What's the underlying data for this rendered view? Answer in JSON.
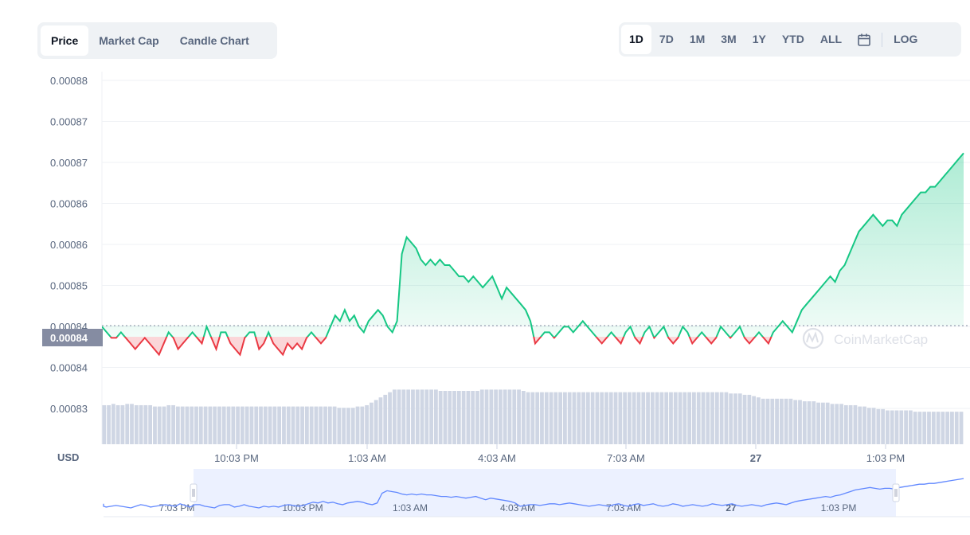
{
  "tabs": [
    "Price",
    "Market Cap",
    "Candle Chart"
  ],
  "ranges": [
    "1D",
    "7D",
    "1M",
    "3M",
    "1Y",
    "YTD",
    "ALL"
  ],
  "log_label": "LOG",
  "icons": {
    "calendar": "calendar-icon",
    "watermark": "coinmarketcap-logo"
  },
  "watermark_text": "CoinMarketCap",
  "currency_label": "USD",
  "current_price_label": "0.00084",
  "colors": {
    "up": "#16c784",
    "down": "#ea3943",
    "volume": "#cfd6e4",
    "navigator": "#6188ff"
  },
  "chart_data": {
    "type": "line",
    "y_tick_labels": [
      "0.00088",
      "0.00087",
      "0.00087",
      "0.00086",
      "0.00086",
      "0.00085",
      "0.00084",
      "0.00084",
      "0.00083"
    ],
    "x_tick_labels": [
      "10:03 PM",
      "1:03 AM",
      "4:03 AM",
      "7:03 AM",
      "27",
      "1:03 PM"
    ],
    "navigator_labels": [
      "7:03 PM",
      "10:03 PM",
      "1:03 AM",
      "4:03 AM",
      "7:03 AM",
      "27",
      "1:03 PM"
    ],
    "baseline": 0.0008412,
    "ylim": [
      0.00082,
      0.000885
    ],
    "series": [
      {
        "values": [
          0.000841,
          0.00084,
          0.000839,
          0.000839,
          0.00084,
          0.000839,
          0.000838,
          0.000837,
          0.000838,
          0.000839,
          0.000838,
          0.000837,
          0.000836,
          0.000838,
          0.00084,
          0.000839,
          0.000837,
          0.000838,
          0.000839,
          0.00084,
          0.000839,
          0.000838,
          0.000841,
          0.000839,
          0.000837,
          0.00084,
          0.00084,
          0.000838,
          0.000837,
          0.000836,
          0.000839,
          0.00084,
          0.00084,
          0.000837,
          0.000838,
          0.00084,
          0.000838,
          0.000837,
          0.000836,
          0.000838,
          0.000837,
          0.000838,
          0.000837,
          0.000839,
          0.00084,
          0.000839,
          0.000838,
          0.000839,
          0.000841,
          0.000843,
          0.000842,
          0.000844,
          0.000842,
          0.000843,
          0.000841,
          0.00084,
          0.000842,
          0.000843,
          0.000844,
          0.000843,
          0.000841,
          0.00084,
          0.000842,
          0.000854,
          0.000857,
          0.000856,
          0.000855,
          0.000853,
          0.000852,
          0.000853,
          0.000852,
          0.000853,
          0.000852,
          0.000852,
          0.000851,
          0.00085,
          0.00085,
          0.000849,
          0.00085,
          0.000849,
          0.000848,
          0.000849,
          0.00085,
          0.000848,
          0.000846,
          0.000848,
          0.000847,
          0.000846,
          0.000845,
          0.000844,
          0.000842,
          0.000838,
          0.000839,
          0.00084,
          0.00084,
          0.000839,
          0.00084,
          0.000841,
          0.000841,
          0.00084,
          0.000841,
          0.000842,
          0.000841,
          0.00084,
          0.000839,
          0.000838,
          0.000839,
          0.00084,
          0.000839,
          0.000838,
          0.00084,
          0.000841,
          0.000839,
          0.000838,
          0.00084,
          0.000841,
          0.000839,
          0.00084,
          0.000841,
          0.000839,
          0.000838,
          0.000839,
          0.000841,
          0.00084,
          0.000838,
          0.000839,
          0.00084,
          0.000839,
          0.000838,
          0.000839,
          0.000841,
          0.00084,
          0.000839,
          0.00084,
          0.000841,
          0.000839,
          0.000838,
          0.000839,
          0.00084,
          0.000839,
          0.000838,
          0.00084,
          0.000841,
          0.000842,
          0.000841,
          0.00084,
          0.000842,
          0.000844,
          0.000845,
          0.000846,
          0.000847,
          0.000848,
          0.000849,
          0.00085,
          0.000849,
          0.000851,
          0.000852,
          0.000854,
          0.000856,
          0.000858,
          0.000859,
          0.00086,
          0.000861,
          0.00086,
          0.000859,
          0.00086,
          0.00086,
          0.000859,
          0.000861,
          0.000862,
          0.000863,
          0.000864,
          0.000865,
          0.000865,
          0.000866,
          0.000866,
          0.000867,
          0.000868,
          0.000869,
          0.00087,
          0.000871,
          0.000872
        ]
      }
    ],
    "volume": [
      0.3,
      0.3,
      0.31,
      0.3,
      0.3,
      0.31,
      0.31,
      0.3,
      0.3,
      0.3,
      0.3,
      0.29,
      0.29,
      0.29,
      0.3,
      0.3,
      0.29,
      0.29,
      0.29,
      0.29,
      0.29,
      0.29,
      0.29,
      0.29,
      0.29,
      0.29,
      0.29,
      0.29,
      0.29,
      0.29,
      0.29,
      0.29,
      0.29,
      0.29,
      0.29,
      0.29,
      0.29,
      0.29,
      0.29,
      0.29,
      0.29,
      0.29,
      0.29,
      0.29,
      0.29,
      0.29,
      0.29,
      0.29,
      0.29,
      0.29,
      0.29,
      0.28,
      0.28,
      0.28,
      0.28,
      0.29,
      0.29,
      0.3,
      0.32,
      0.34,
      0.36,
      0.38,
      0.4,
      0.42,
      0.42,
      0.42,
      0.42,
      0.42,
      0.42,
      0.42,
      0.42,
      0.42,
      0.42,
      0.41,
      0.41,
      0.41,
      0.41,
      0.41,
      0.41,
      0.41,
      0.41,
      0.41,
      0.42,
      0.42,
      0.42,
      0.42,
      0.42,
      0.42,
      0.42,
      0.42,
      0.42,
      0.41,
      0.4,
      0.4,
      0.4,
      0.4,
      0.4,
      0.4,
      0.4,
      0.4,
      0.4,
      0.4,
      0.4,
      0.4,
      0.4,
      0.4,
      0.4,
      0.4,
      0.4,
      0.4,
      0.4,
      0.4,
      0.4,
      0.4,
      0.4,
      0.4,
      0.4,
      0.4,
      0.4,
      0.4,
      0.4,
      0.4,
      0.4,
      0.4,
      0.4,
      0.4,
      0.4,
      0.4,
      0.4,
      0.4,
      0.4,
      0.4,
      0.4,
      0.4,
      0.4,
      0.4,
      0.39,
      0.39,
      0.39,
      0.38,
      0.38,
      0.37,
      0.36,
      0.35,
      0.35,
      0.35,
      0.35,
      0.35,
      0.35,
      0.35,
      0.34,
      0.34,
      0.33,
      0.33,
      0.33,
      0.32,
      0.32,
      0.32,
      0.31,
      0.31,
      0.31,
      0.3,
      0.3,
      0.3,
      0.29,
      0.29,
      0.28,
      0.28,
      0.27,
      0.27,
      0.26,
      0.26,
      0.26,
      0.26,
      0.26,
      0.26,
      0.25,
      0.25,
      0.25,
      0.25,
      0.25,
      0.25,
      0.25,
      0.25,
      0.25,
      0.25,
      0.25
    ]
  }
}
